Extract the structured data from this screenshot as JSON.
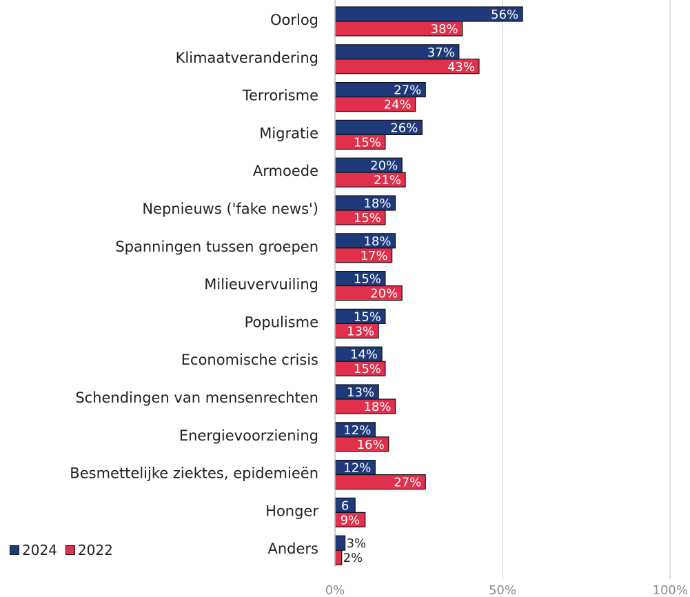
{
  "chart_data": {
    "type": "bar",
    "orientation": "horizontal",
    "categories": [
      "Oorlog",
      "Klimaatverandering",
      "Terrorisme",
      "Migratie",
      "Armoede",
      "Nepnieuws ('fake news')",
      "Spanningen tussen groepen",
      "Milieuvervuiling",
      "Populisme",
      "Economische crisis",
      "Schendingen van mensenrechten",
      "Energievoorziening",
      "Besmettelijke ziektes, epidemieën",
      "Honger",
      "Anders"
    ],
    "series": [
      {
        "name": "2024",
        "color": "#1f3a7a",
        "values": [
          56,
          37,
          27,
          26,
          20,
          18,
          18,
          15,
          15,
          14,
          13,
          12,
          12,
          6,
          3
        ],
        "labels": [
          "56%",
          "37%",
          "27%",
          "26%",
          "20%",
          "18%",
          "18%",
          "15%",
          "15%",
          "14%",
          "13%",
          "12%",
          "12%",
          "6",
          "3%"
        ]
      },
      {
        "name": "2022",
        "color": "#e0304c",
        "values": [
          38,
          43,
          24,
          15,
          21,
          15,
          17,
          20,
          13,
          15,
          18,
          16,
          27,
          9,
          2
        ],
        "labels": [
          "38%",
          "43%",
          "24%",
          "15%",
          "21%",
          "15%",
          "17%",
          "20%",
          "13%",
          "15%",
          "18%",
          "16%",
          "27%",
          "9%",
          "2%"
        ]
      }
    ],
    "xlim": [
      0,
      100
    ],
    "xticks": [
      0,
      50,
      100
    ],
    "xtick_labels": [
      "0%",
      "50%",
      "100%"
    ],
    "grid": true,
    "legend": "bottom-left"
  }
}
